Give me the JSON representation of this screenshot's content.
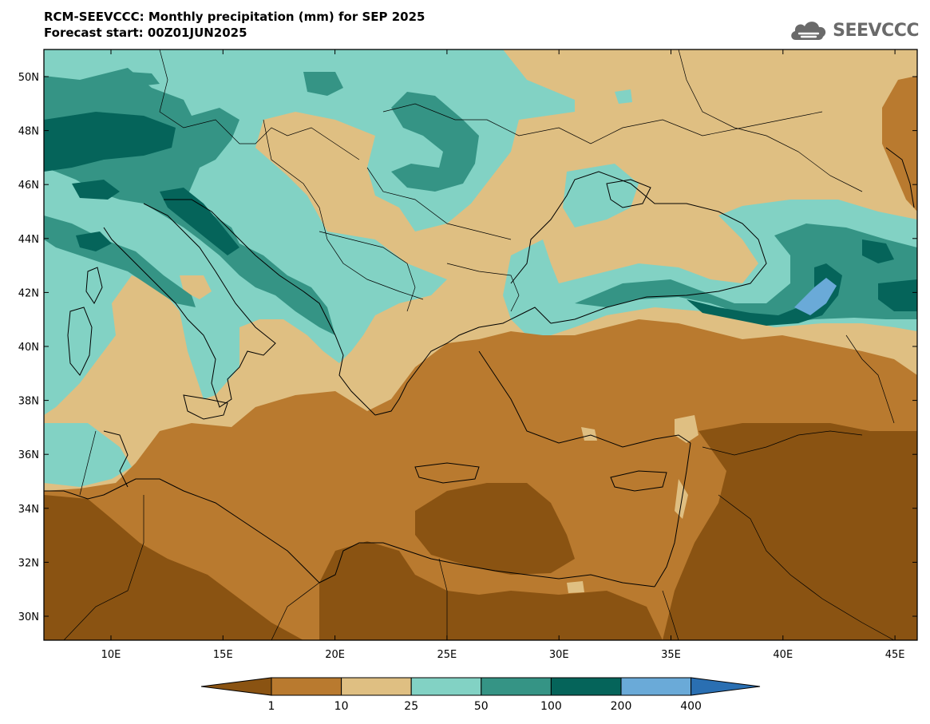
{
  "header": {
    "title_line1": "RCM-SEEVCCC: Monthly precipitation (mm) for SEP 2025",
    "title_line2": "Forecast start: 00Z01JUN2025"
  },
  "logo": {
    "text": "SEEVCCC",
    "icon": "cloud-icon"
  },
  "axes": {
    "lat_labels": [
      "50N",
      "48N",
      "46N",
      "44N",
      "42N",
      "40N",
      "38N",
      "36N",
      "34N",
      "32N",
      "30N"
    ],
    "lon_labels": [
      "10E",
      "15E",
      "20E",
      "25E",
      "30E",
      "35E",
      "40E",
      "45E"
    ]
  },
  "colorbar": {
    "labels": [
      "1",
      "10",
      "25",
      "50",
      "100",
      "200",
      "400"
    ],
    "colors": [
      "#8a5312",
      "#b97a2f",
      "#dfbf82",
      "#82d2c4",
      "#359485",
      "#05645a",
      "#6aaad8",
      "#2a6fb2"
    ]
  },
  "palette": {
    "dry_darkest": "#8a5312",
    "dry_dark": "#b97a2f",
    "dry_light": "#dfbf82",
    "wet_light": "#82d2c4",
    "wet_mid": "#359485",
    "wet_dark": "#05645a",
    "very_wet": "#6aaad8"
  }
}
